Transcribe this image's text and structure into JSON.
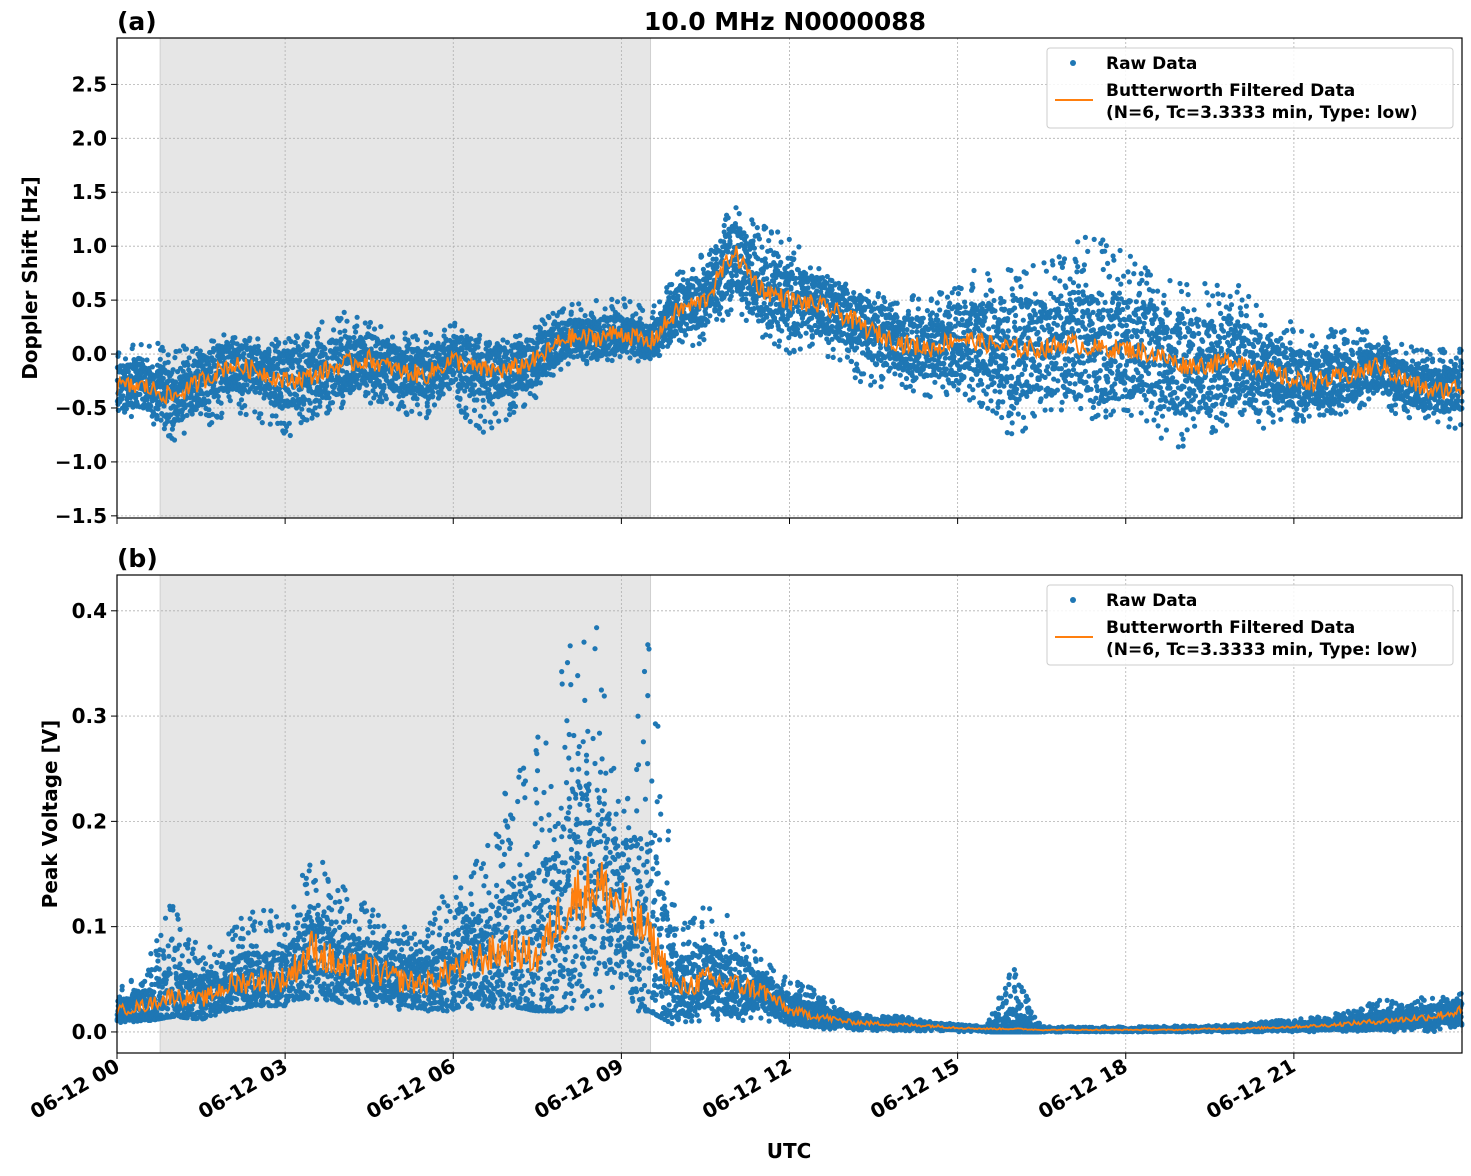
{
  "title": "10.0 MHz N0000088",
  "colors": {
    "raw": "#1f77b4",
    "filtered": "#ff7f0e",
    "shade": "#e6e6e6",
    "grid": "#b0b0b0"
  },
  "x_tick_labels": [
    "06-12 00",
    "06-12 03",
    "06-12 06",
    "06-12 09",
    "06-12 12",
    "06-12 15",
    "06-12 18",
    "06-12 21"
  ],
  "xlabel": "UTC",
  "chart_data": [
    {
      "panel_label": "(a)",
      "type": "scatter+line",
      "ylabel": "Doppler Shift [Hz]",
      "xlim_hours": [
        0,
        24
      ],
      "ylim": [
        -1.52,
        2.93
      ],
      "y_ticks": [
        -1.5,
        -1.0,
        -0.5,
        0.0,
        0.5,
        1.0,
        1.5,
        2.0,
        2.5
      ],
      "y_tick_labels": [
        "−1.5",
        "−1.0",
        "−0.5",
        "0.0",
        "0.5",
        "1.0",
        "1.5",
        "2.0",
        "2.5"
      ],
      "shaded_hours": [
        0.77,
        9.52
      ],
      "grid": true,
      "legend_position": "top-right",
      "legend": {
        "raw": "Raw Data",
        "filtered_line1": "Butterworth Filtered Data",
        "filtered_line2": "(N=6, Tc=3.3333 min, Type: low)"
      },
      "x_hours": [
        0,
        0.5,
        1,
        1.5,
        2,
        2.5,
        3,
        3.5,
        4,
        4.5,
        5,
        5.5,
        6,
        6.5,
        7,
        7.5,
        8,
        8.5,
        9,
        9.5,
        10,
        10.5,
        11,
        11.5,
        12,
        12.5,
        13,
        13.5,
        14,
        14.5,
        15,
        15.5,
        16,
        16.5,
        17,
        17.5,
        18,
        18.5,
        19,
        19.5,
        20,
        20.5,
        21,
        21.5,
        22,
        22.5,
        23,
        23.5,
        24
      ],
      "filtered": [
        -0.3,
        -0.3,
        -0.4,
        -0.25,
        -0.1,
        -0.15,
        -0.25,
        -0.2,
        -0.1,
        -0.05,
        -0.15,
        -0.2,
        -0.05,
        -0.15,
        -0.15,
        -0.05,
        0.15,
        0.15,
        0.2,
        0.1,
        0.4,
        0.5,
        0.95,
        0.6,
        0.5,
        0.45,
        0.35,
        0.2,
        0.1,
        0.05,
        0.15,
        0.1,
        0.05,
        0.05,
        0.1,
        0.05,
        0.05,
        0.0,
        -0.1,
        -0.1,
        -0.05,
        -0.15,
        -0.25,
        -0.25,
        -0.2,
        -0.1,
        -0.25,
        -0.35,
        -0.3
      ],
      "raw_low": [
        -0.6,
        -0.6,
        -0.8,
        -0.75,
        -0.55,
        -0.6,
        -0.8,
        -0.6,
        -0.5,
        -0.45,
        -0.55,
        -0.6,
        -0.5,
        -0.75,
        -0.6,
        -0.45,
        -0.1,
        -0.1,
        -0.05,
        -0.1,
        0.05,
        0.1,
        0.4,
        0.15,
        0.0,
        0.0,
        -0.15,
        -0.35,
        -0.3,
        -0.4,
        -0.4,
        -0.55,
        -0.8,
        -0.6,
        -0.5,
        -0.65,
        -0.55,
        -0.8,
        -0.9,
        -0.8,
        -0.65,
        -0.7,
        -0.65,
        -0.6,
        -0.55,
        -0.5,
        -0.6,
        -0.65,
        -0.7
      ],
      "raw_high": [
        0.1,
        0.1,
        0.1,
        0.1,
        0.2,
        0.15,
        0.15,
        0.25,
        0.4,
        0.3,
        0.2,
        0.2,
        0.3,
        0.2,
        0.15,
        0.3,
        0.45,
        0.5,
        0.55,
        0.4,
        0.75,
        0.95,
        1.4,
        1.2,
        1.1,
        0.85,
        0.75,
        0.6,
        0.55,
        0.55,
        0.75,
        0.8,
        0.8,
        0.85,
        1.1,
        1.1,
        0.95,
        0.75,
        0.7,
        0.65,
        0.65,
        0.35,
        0.3,
        0.25,
        0.25,
        0.2,
        0.1,
        0.05,
        0.05
      ]
    },
    {
      "panel_label": "(b)",
      "type": "scatter+line",
      "ylabel": "Peak Voltage [V]",
      "xlim_hours": [
        0,
        24
      ],
      "ylim": [
        -0.02,
        0.434
      ],
      "y_ticks": [
        0.0,
        0.1,
        0.2,
        0.3,
        0.4
      ],
      "y_tick_labels": [
        "0.0",
        "0.1",
        "0.2",
        "0.3",
        "0.4"
      ],
      "shaded_hours": [
        0.77,
        9.52
      ],
      "grid": true,
      "legend_position": "top-right",
      "legend": {
        "raw": "Raw Data",
        "filtered_line1": "Butterworth Filtered Data",
        "filtered_line2": "(N=6, Tc=3.3333 min, Type: low)"
      },
      "x_hours": [
        0,
        0.5,
        1,
        1.5,
        2,
        2.5,
        3,
        3.5,
        4,
        4.5,
        5,
        5.5,
        6,
        6.5,
        7,
        7.5,
        8,
        8.5,
        9,
        9.5,
        10,
        10.5,
        11,
        11.5,
        12,
        12.5,
        13,
        13.5,
        14,
        14.5,
        15,
        15.5,
        16,
        16.5,
        17,
        17.5,
        18,
        18.5,
        19,
        19.5,
        20,
        20.5,
        21,
        21.5,
        22,
        22.5,
        23,
        23.5,
        24
      ],
      "filtered": [
        0.02,
        0.025,
        0.035,
        0.03,
        0.045,
        0.05,
        0.05,
        0.08,
        0.06,
        0.06,
        0.05,
        0.045,
        0.06,
        0.07,
        0.08,
        0.07,
        0.12,
        0.14,
        0.12,
        0.09,
        0.04,
        0.05,
        0.045,
        0.04,
        0.02,
        0.015,
        0.01,
        0.008,
        0.007,
        0.006,
        0.004,
        0.003,
        0.003,
        0.002,
        0.002,
        0.002,
        0.002,
        0.002,
        0.002,
        0.003,
        0.003,
        0.004,
        0.005,
        0.006,
        0.008,
        0.01,
        0.012,
        0.015,
        0.02
      ],
      "raw_low": [
        0.008,
        0.01,
        0.015,
        0.012,
        0.02,
        0.025,
        0.025,
        0.03,
        0.025,
        0.025,
        0.02,
        0.02,
        0.02,
        0.02,
        0.025,
        0.02,
        0.02,
        0.02,
        0.02,
        0.02,
        0.005,
        0.01,
        0.01,
        0.01,
        0.005,
        0.003,
        0.002,
        0.001,
        0.001,
        0.001,
        0.0,
        0.0,
        0.0,
        0.0,
        0.0,
        0.0,
        0.0,
        0.0,
        0.0,
        0.0,
        0.0,
        0.0,
        0.0,
        0.0,
        0.0,
        0.0,
        0.0,
        0.0,
        0.005
      ],
      "raw_high": [
        0.04,
        0.06,
        0.13,
        0.08,
        0.1,
        0.12,
        0.11,
        0.18,
        0.14,
        0.12,
        0.1,
        0.1,
        0.15,
        0.17,
        0.24,
        0.3,
        0.36,
        0.41,
        0.2,
        0.39,
        0.1,
        0.12,
        0.11,
        0.07,
        0.05,
        0.04,
        0.02,
        0.015,
        0.015,
        0.01,
        0.008,
        0.006,
        0.065,
        0.005,
        0.005,
        0.005,
        0.005,
        0.005,
        0.006,
        0.006,
        0.007,
        0.01,
        0.012,
        0.015,
        0.02,
        0.03,
        0.03,
        0.035,
        0.04
      ]
    }
  ]
}
